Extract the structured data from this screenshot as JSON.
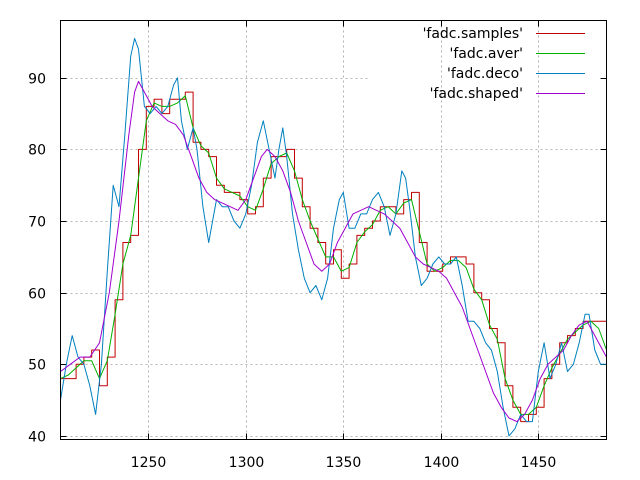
{
  "chart_data": {
    "type": "line",
    "title": "",
    "xlabel": "",
    "ylabel": "",
    "xlim": [
      1205,
      1485
    ],
    "ylim": [
      39.5,
      98.0
    ],
    "xticks": [
      1250,
      1300,
      1350,
      1400,
      1450
    ],
    "yticks": [
      40,
      50,
      60,
      70,
      80,
      90
    ],
    "grid": true,
    "legend_position": "top-right",
    "series": [
      {
        "name": "'fadc.samples'",
        "color": "#c00000",
        "step": true,
        "points": [
          [
            1205,
            48
          ],
          [
            1209,
            48
          ],
          [
            1213,
            50
          ],
          [
            1217,
            51
          ],
          [
            1221,
            52
          ],
          [
            1225,
            47
          ],
          [
            1229,
            51
          ],
          [
            1233,
            59
          ],
          [
            1237,
            67
          ],
          [
            1241,
            68
          ],
          [
            1245,
            80
          ],
          [
            1249,
            86
          ],
          [
            1253,
            87
          ],
          [
            1257,
            85
          ],
          [
            1261,
            87
          ],
          [
            1265,
            87
          ],
          [
            1269,
            88
          ],
          [
            1273,
            81
          ],
          [
            1277,
            80
          ],
          [
            1281,
            79
          ],
          [
            1285,
            75
          ],
          [
            1289,
            74
          ],
          [
            1293,
            74
          ],
          [
            1297,
            73
          ],
          [
            1301,
            71
          ],
          [
            1305,
            72
          ],
          [
            1309,
            76
          ],
          [
            1313,
            79
          ],
          [
            1317,
            79
          ],
          [
            1321,
            80
          ],
          [
            1325,
            76
          ],
          [
            1329,
            72
          ],
          [
            1333,
            69
          ],
          [
            1337,
            67
          ],
          [
            1341,
            64
          ],
          [
            1345,
            66
          ],
          [
            1349,
            62
          ],
          [
            1353,
            64
          ],
          [
            1357,
            68
          ],
          [
            1361,
            69
          ],
          [
            1365,
            70
          ],
          [
            1369,
            72
          ],
          [
            1373,
            72
          ],
          [
            1377,
            71
          ],
          [
            1381,
            73
          ],
          [
            1385,
            74
          ],
          [
            1389,
            67
          ],
          [
            1393,
            63
          ],
          [
            1397,
            63
          ],
          [
            1401,
            64
          ],
          [
            1405,
            65
          ],
          [
            1409,
            65
          ],
          [
            1413,
            64
          ],
          [
            1417,
            60
          ],
          [
            1421,
            59
          ],
          [
            1425,
            55
          ],
          [
            1429,
            53
          ],
          [
            1433,
            47
          ],
          [
            1437,
            44
          ],
          [
            1441,
            42
          ],
          [
            1445,
            43
          ],
          [
            1449,
            44
          ],
          [
            1453,
            48
          ],
          [
            1457,
            50
          ],
          [
            1461,
            53
          ],
          [
            1465,
            54
          ],
          [
            1469,
            55
          ],
          [
            1473,
            56
          ],
          [
            1477,
            56
          ],
          [
            1481,
            56
          ],
          [
            1485,
            56
          ]
        ]
      },
      {
        "name": "'fadc.aver'",
        "color": "#00b000",
        "step": false,
        "points": [
          [
            1205,
            48
          ],
          [
            1209,
            48.5
          ],
          [
            1213,
            49.5
          ],
          [
            1217,
            50.5
          ],
          [
            1221,
            50.5
          ],
          [
            1225,
            48
          ],
          [
            1229,
            50.5
          ],
          [
            1233,
            57
          ],
          [
            1237,
            64
          ],
          [
            1241,
            68
          ],
          [
            1245,
            76
          ],
          [
            1249,
            84
          ],
          [
            1253,
            86.5
          ],
          [
            1257,
            86
          ],
          [
            1261,
            86
          ],
          [
            1265,
            86.5
          ],
          [
            1269,
            87.5
          ],
          [
            1273,
            83
          ],
          [
            1277,
            80.5
          ],
          [
            1281,
            79.5
          ],
          [
            1285,
            76
          ],
          [
            1289,
            74.5
          ],
          [
            1293,
            74
          ],
          [
            1297,
            73.5
          ],
          [
            1301,
            72
          ],
          [
            1305,
            71.5
          ],
          [
            1309,
            74.5
          ],
          [
            1313,
            78
          ],
          [
            1317,
            79
          ],
          [
            1321,
            79.5
          ],
          [
            1325,
            77
          ],
          [
            1329,
            73
          ],
          [
            1333,
            70
          ],
          [
            1337,
            67.5
          ],
          [
            1341,
            65
          ],
          [
            1345,
            65
          ],
          [
            1349,
            63
          ],
          [
            1353,
            63.5
          ],
          [
            1357,
            67
          ],
          [
            1361,
            68.5
          ],
          [
            1365,
            69.5
          ],
          [
            1369,
            71.5
          ],
          [
            1373,
            72
          ],
          [
            1377,
            71
          ],
          [
            1381,
            72.5
          ],
          [
            1385,
            73
          ],
          [
            1389,
            68.5
          ],
          [
            1393,
            64
          ],
          [
            1397,
            63
          ],
          [
            1401,
            63.5
          ],
          [
            1405,
            64.5
          ],
          [
            1409,
            64.5
          ],
          [
            1413,
            63.5
          ],
          [
            1417,
            60.5
          ],
          [
            1421,
            59
          ],
          [
            1425,
            55.5
          ],
          [
            1429,
            53.5
          ],
          [
            1433,
            48
          ],
          [
            1437,
            45
          ],
          [
            1441,
            43
          ],
          [
            1445,
            43
          ],
          [
            1449,
            44
          ],
          [
            1453,
            47
          ],
          [
            1457,
            49.5
          ],
          [
            1461,
            51.5
          ],
          [
            1465,
            53.5
          ],
          [
            1469,
            54.5
          ],
          [
            1473,
            55.5
          ],
          [
            1477,
            56
          ],
          [
            1481,
            55
          ],
          [
            1485,
            52
          ]
        ]
      },
      {
        "name": "'fadc.deco'",
        "color": "#0080c0",
        "step": false,
        "points": [
          [
            1205,
            45
          ],
          [
            1208,
            50
          ],
          [
            1211,
            54
          ],
          [
            1214,
            51
          ],
          [
            1217,
            50
          ],
          [
            1220,
            47
          ],
          [
            1223,
            43
          ],
          [
            1226,
            50
          ],
          [
            1229,
            63
          ],
          [
            1232,
            75
          ],
          [
            1235,
            72
          ],
          [
            1238,
            82
          ],
          [
            1241,
            93
          ],
          [
            1243,
            95.5
          ],
          [
            1245,
            94
          ],
          [
            1248,
            86
          ],
          [
            1251,
            85
          ],
          [
            1254,
            86
          ],
          [
            1257,
            85
          ],
          [
            1260,
            86
          ],
          [
            1263,
            89
          ],
          [
            1265,
            90
          ],
          [
            1267,
            84
          ],
          [
            1270,
            80
          ],
          [
            1273,
            83
          ],
          [
            1275,
            80
          ],
          [
            1278,
            72
          ],
          [
            1281,
            67
          ],
          [
            1283,
            70
          ],
          [
            1285,
            73
          ],
          [
            1288,
            72
          ],
          [
            1291,
            72
          ],
          [
            1294,
            70
          ],
          [
            1297,
            69
          ],
          [
            1300,
            71
          ],
          [
            1303,
            75
          ],
          [
            1306,
            81
          ],
          [
            1309,
            84
          ],
          [
            1312,
            80
          ],
          [
            1315,
            76
          ],
          [
            1317,
            80
          ],
          [
            1319,
            83
          ],
          [
            1321,
            79
          ],
          [
            1324,
            71
          ],
          [
            1327,
            66
          ],
          [
            1330,
            62
          ],
          [
            1333,
            60
          ],
          [
            1336,
            61
          ],
          [
            1339,
            59
          ],
          [
            1342,
            62
          ],
          [
            1345,
            69
          ],
          [
            1348,
            73
          ],
          [
            1350,
            74
          ],
          [
            1353,
            69
          ],
          [
            1356,
            69
          ],
          [
            1359,
            71
          ],
          [
            1362,
            71
          ],
          [
            1365,
            73
          ],
          [
            1368,
            74
          ],
          [
            1371,
            72
          ],
          [
            1374,
            68
          ],
          [
            1377,
            71
          ],
          [
            1380,
            77
          ],
          [
            1382,
            76
          ],
          [
            1384,
            72
          ],
          [
            1387,
            65
          ],
          [
            1390,
            61
          ],
          [
            1393,
            62
          ],
          [
            1396,
            64
          ],
          [
            1399,
            65
          ],
          [
            1402,
            64
          ],
          [
            1405,
            64
          ],
          [
            1408,
            65
          ],
          [
            1411,
            61
          ],
          [
            1414,
            56
          ],
          [
            1417,
            56
          ],
          [
            1420,
            55
          ],
          [
            1423,
            53
          ],
          [
            1426,
            52
          ],
          [
            1429,
            49
          ],
          [
            1432,
            44
          ],
          [
            1435,
            40
          ],
          [
            1438,
            41
          ],
          [
            1441,
            43
          ],
          [
            1444,
            42
          ],
          [
            1447,
            42
          ],
          [
            1450,
            49
          ],
          [
            1453,
            53
          ],
          [
            1456,
            48
          ],
          [
            1459,
            50
          ],
          [
            1462,
            53
          ],
          [
            1465,
            49
          ],
          [
            1468,
            50
          ],
          [
            1471,
            53
          ],
          [
            1474,
            57
          ],
          [
            1476,
            57
          ],
          [
            1479,
            52
          ],
          [
            1482,
            50
          ],
          [
            1485,
            50
          ]
        ]
      },
      {
        "name": "'fadc.shaped'",
        "color": "#a000d0",
        "step": false,
        "points": [
          [
            1205,
            49
          ],
          [
            1210,
            50
          ],
          [
            1215,
            51
          ],
          [
            1220,
            51
          ],
          [
            1225,
            53
          ],
          [
            1230,
            60
          ],
          [
            1235,
            70
          ],
          [
            1240,
            82
          ],
          [
            1243,
            88
          ],
          [
            1245,
            89.5
          ],
          [
            1248,
            88
          ],
          [
            1252,
            86
          ],
          [
            1256,
            85
          ],
          [
            1260,
            84
          ],
          [
            1264,
            83.5
          ],
          [
            1268,
            82
          ],
          [
            1272,
            79
          ],
          [
            1276,
            76
          ],
          [
            1280,
            74
          ],
          [
            1284,
            73
          ],
          [
            1288,
            72.5
          ],
          [
            1292,
            72
          ],
          [
            1296,
            71.5
          ],
          [
            1300,
            73
          ],
          [
            1304,
            76
          ],
          [
            1308,
            79
          ],
          [
            1311,
            80
          ],
          [
            1315,
            79
          ],
          [
            1319,
            77
          ],
          [
            1323,
            74
          ],
          [
            1327,
            70
          ],
          [
            1331,
            67
          ],
          [
            1335,
            64
          ],
          [
            1339,
            63
          ],
          [
            1343,
            64
          ],
          [
            1347,
            67
          ],
          [
            1351,
            69
          ],
          [
            1355,
            71
          ],
          [
            1359,
            71.5
          ],
          [
            1363,
            72
          ],
          [
            1367,
            71.5
          ],
          [
            1371,
            71
          ],
          [
            1375,
            70
          ],
          [
            1379,
            69
          ],
          [
            1383,
            67
          ],
          [
            1387,
            65
          ],
          [
            1391,
            64
          ],
          [
            1395,
            63.5
          ],
          [
            1399,
            63
          ],
          [
            1403,
            62
          ],
          [
            1407,
            60
          ],
          [
            1411,
            58
          ],
          [
            1415,
            55
          ],
          [
            1419,
            52
          ],
          [
            1423,
            49
          ],
          [
            1427,
            46
          ],
          [
            1431,
            44
          ],
          [
            1435,
            42.5
          ],
          [
            1439,
            42
          ],
          [
            1443,
            43
          ],
          [
            1447,
            45
          ],
          [
            1451,
            48
          ],
          [
            1455,
            50
          ],
          [
            1459,
            51
          ],
          [
            1463,
            52
          ],
          [
            1467,
            54
          ],
          [
            1471,
            55.5
          ],
          [
            1475,
            56
          ],
          [
            1479,
            54
          ],
          [
            1483,
            52
          ],
          [
            1485,
            51
          ]
        ]
      }
    ]
  }
}
